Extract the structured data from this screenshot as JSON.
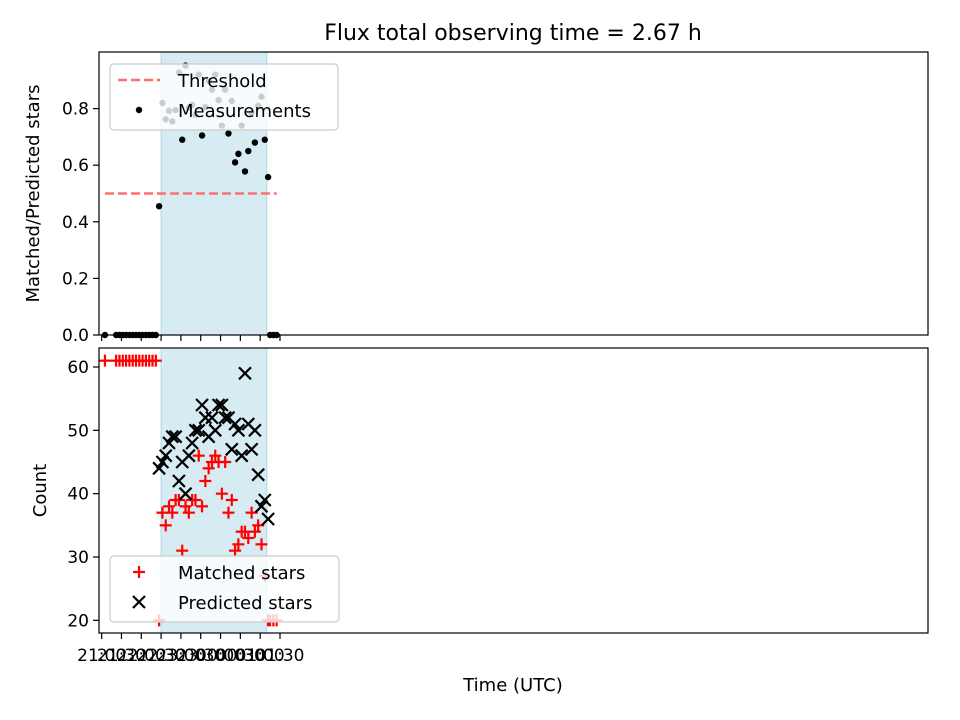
{
  "title": "Flux total observing time = 2.67 h",
  "xlabel": "Time (UTC)",
  "colors": {
    "threshold": "#ff6f6f",
    "measurement": "#000000",
    "matched": "#ff0000",
    "predicted": "#000000",
    "shade": "#add8e6"
  },
  "chart_data": [
    {
      "type": "scatter",
      "ylabel": "Matched/Predicted stars",
      "ylim": [
        0,
        1.0
      ],
      "yticks": [
        0.0,
        0.2,
        0.4,
        0.6,
        0.8
      ],
      "ytick_labels": [
        "0.0",
        "0.2",
        "0.4",
        "0.6",
        "0.8"
      ],
      "xlim_minutes": [
        -4,
        1251
      ],
      "shaded_span": [
        "22:30",
        "01:10"
      ],
      "legend_placement": "top-left",
      "threshold": {
        "name": "Threshold",
        "y": 0.5,
        "x_range": [
          "21:05",
          "01:25"
        ]
      },
      "measurements": {
        "name": "Measurements",
        "x": [
          "21:05",
          "21:22",
          "21:27",
          "21:32",
          "21:37",
          "21:42",
          "21:47",
          "21:52",
          "21:57",
          "22:02",
          "22:07",
          "22:12",
          "22:17",
          "22:22",
          "22:27",
          "22:32",
          "22:37",
          "22:42",
          "22:47",
          "22:52",
          "22:57",
          "23:02",
          "23:07",
          "23:12",
          "23:17",
          "23:22",
          "23:27",
          "23:32",
          "23:37",
          "23:42",
          "23:47",
          "23:52",
          "23:57",
          "00:02",
          "00:07",
          "00:12",
          "00:17",
          "00:22",
          "00:27",
          "00:32",
          "00:37",
          "00:42",
          "00:47",
          "00:52",
          "00:57",
          "01:02",
          "01:07",
          "01:12",
          "01:15",
          "01:20",
          "01:25"
        ],
        "y": [
          0,
          0,
          0,
          0,
          0,
          0,
          0,
          0,
          0,
          0,
          0,
          0,
          0,
          0,
          0.455,
          0.82,
          0.762,
          0.792,
          0.755,
          0.795,
          0.927,
          0.69,
          0.952,
          0.803,
          0.813,
          0.778,
          0.92,
          0.705,
          0.805,
          0.898,
          0.867,
          0.92,
          0.83,
          0.74,
          0.867,
          0.712,
          0.827,
          0.61,
          0.64,
          0.74,
          0.578,
          0.65,
          0.785,
          0.68,
          0.81,
          0.842,
          0.69,
          0.558,
          0,
          0,
          0
        ]
      }
    },
    {
      "type": "scatter",
      "ylabel": "Count",
      "ylim": [
        18,
        63
      ],
      "yticks": [
        20,
        30,
        40,
        50,
        60
      ],
      "ytick_labels": [
        "20",
        "30",
        "40",
        "50",
        "60"
      ],
      "xlim_minutes": [
        -4,
        1251
      ],
      "xticks": [
        "21:00",
        "21:30",
        "22:00",
        "22:30",
        "23:00",
        "23:30",
        "00:00",
        "00:30",
        "01:00",
        "01:30"
      ],
      "xtick_minutes": [
        1260,
        1290,
        1320,
        1350,
        1380,
        1410,
        1440,
        1470,
        1500,
        1530
      ],
      "shaded_span": [
        "22:30",
        "01:10"
      ],
      "legend_placement": "bottom-left",
      "matched": {
        "name": "Matched stars",
        "x": [
          "21:05",
          "21:22",
          "21:27",
          "21:32",
          "21:37",
          "21:42",
          "21:47",
          "21:52",
          "21:57",
          "22:02",
          "22:07",
          "22:12",
          "22:17",
          "22:22",
          "22:27",
          "22:32",
          "22:37",
          "22:42",
          "22:47",
          "22:52",
          "22:57",
          "23:02",
          "23:07",
          "23:12",
          "23:17",
          "23:22",
          "23:27",
          "23:32",
          "23:37",
          "23:42",
          "23:47",
          "23:52",
          "23:57",
          "00:02",
          "00:07",
          "00:12",
          "00:17",
          "00:22",
          "00:27",
          "00:32",
          "00:37",
          "00:42",
          "00:47",
          "00:52",
          "00:57",
          "01:02",
          "01:07",
          "01:12",
          "01:15",
          "01:20",
          "01:25"
        ],
        "y": [
          61,
          61,
          61,
          61,
          61,
          61,
          61,
          61,
          61,
          61,
          61,
          61,
          61,
          61,
          20,
          37,
          35,
          38,
          37,
          39,
          39,
          31,
          38,
          37,
          39,
          39,
          46,
          38,
          42,
          44,
          45,
          46,
          45,
          40,
          45,
          37,
          39,
          31,
          32,
          34,
          34,
          33,
          37,
          34,
          35,
          32,
          27,
          20,
          20,
          20,
          20
        ]
      },
      "predicted": {
        "name": "Predicted stars",
        "x": [
          "22:27",
          "22:32",
          "22:37",
          "22:42",
          "22:47",
          "22:52",
          "22:57",
          "23:02",
          "23:07",
          "23:12",
          "23:17",
          "23:22",
          "23:27",
          "23:32",
          "23:37",
          "23:42",
          "23:47",
          "23:52",
          "23:57",
          "00:02",
          "00:07",
          "00:12",
          "00:17",
          "00:22",
          "00:27",
          "00:32",
          "00:37",
          "00:42",
          "00:47",
          "00:52",
          "00:57",
          "01:02",
          "01:07",
          "01:12"
        ],
        "y": [
          44,
          45,
          46,
          48,
          49,
          49,
          42,
          45,
          40,
          46,
          48,
          50,
          50,
          54,
          52,
          49,
          52,
          50,
          54,
          54,
          52,
          52,
          47,
          51,
          50,
          46,
          59,
          51,
          47,
          50,
          43,
          38,
          39,
          36
        ]
      }
    }
  ]
}
